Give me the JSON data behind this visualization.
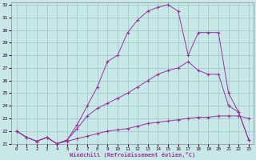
{
  "xlabel": "Windchill (Refroidissement éolien,°C)",
  "bg_color": "#c8e8e8",
  "grid_color": "#a0cccc",
  "line_color": "#993399",
  "xlim": [
    -0.5,
    23.5
  ],
  "ylim": [
    21,
    32.2
  ],
  "yticks": [
    21,
    22,
    23,
    24,
    25,
    26,
    27,
    28,
    29,
    30,
    31,
    32
  ],
  "xticks": [
    0,
    1,
    2,
    3,
    4,
    5,
    6,
    7,
    8,
    9,
    10,
    11,
    12,
    13,
    14,
    15,
    16,
    17,
    18,
    19,
    20,
    21,
    22,
    23
  ],
  "line1_x": [
    0,
    1,
    2,
    3,
    4,
    5,
    6,
    7,
    8,
    9,
    10,
    11,
    12,
    13,
    14,
    15,
    16,
    17,
    18,
    19,
    20,
    21,
    22,
    23
  ],
  "line1_y": [
    22.0,
    21.5,
    21.2,
    21.5,
    21.0,
    21.2,
    21.4,
    21.6,
    21.8,
    22.0,
    22.1,
    22.2,
    22.4,
    22.6,
    22.7,
    22.8,
    22.9,
    23.0,
    23.1,
    23.1,
    23.2,
    23.2,
    23.2,
    23.0
  ],
  "line2_x": [
    0,
    1,
    2,
    3,
    4,
    5,
    6,
    7,
    8,
    9,
    10,
    11,
    12,
    13,
    14,
    15,
    16,
    17,
    18,
    19,
    20,
    21,
    22,
    23
  ],
  "line2_y": [
    22.0,
    21.5,
    21.2,
    21.5,
    21.0,
    21.3,
    22.2,
    23.2,
    23.8,
    24.2,
    24.6,
    25.0,
    25.5,
    26.0,
    26.5,
    26.8,
    27.0,
    27.5,
    26.8,
    26.5,
    26.5,
    24.0,
    23.5,
    21.3
  ],
  "line3_x": [
    0,
    1,
    2,
    3,
    4,
    5,
    6,
    7,
    8,
    9,
    10,
    11,
    12,
    13,
    14,
    15,
    16,
    17,
    18,
    19,
    20,
    21,
    22,
    23
  ],
  "line3_y": [
    22.0,
    21.5,
    21.2,
    21.5,
    21.0,
    21.3,
    22.5,
    24.0,
    25.5,
    27.5,
    28.0,
    29.8,
    30.8,
    31.5,
    31.8,
    32.0,
    31.5,
    28.0,
    29.8,
    29.8,
    29.8,
    25.0,
    23.5,
    21.3
  ]
}
